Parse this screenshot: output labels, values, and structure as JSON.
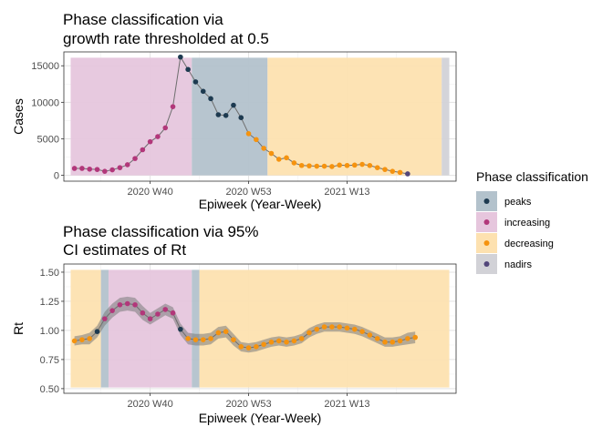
{
  "chart_data": [
    {
      "type": "line",
      "title_lines": [
        "Phase classification via",
        "growth rate thresholded at 0.5"
      ],
      "xlabel": "Epiweek (Year-Week)",
      "ylabel": "Cases",
      "x_ticks": [
        "2020 W40",
        "2020 W53",
        "2021 W13"
      ],
      "y_ticks": [
        "0",
        "5000",
        "10000",
        "15000"
      ],
      "ylim": [
        -800,
        16900
      ],
      "grid": true,
      "phases": [
        {
          "phase": "increasing",
          "start": 2.5,
          "end": 18.5
        },
        {
          "phase": "peaks",
          "start": 18.5,
          "end": 28.5
        },
        {
          "phase": "decreasing",
          "start": 28.5,
          "end": 51.5
        },
        {
          "phase": "nadirs",
          "start": 51.5,
          "end": 52.5
        }
      ],
      "points": [
        {
          "x": 3,
          "y": 950,
          "phase": "increasing"
        },
        {
          "x": 4,
          "y": 950,
          "phase": "increasing"
        },
        {
          "x": 5,
          "y": 850,
          "phase": "increasing"
        },
        {
          "x": 6,
          "y": 800,
          "phase": "increasing"
        },
        {
          "x": 7,
          "y": 550,
          "phase": "increasing"
        },
        {
          "x": 8,
          "y": 750,
          "phase": "increasing"
        },
        {
          "x": 9,
          "y": 1050,
          "phase": "increasing"
        },
        {
          "x": 10,
          "y": 1450,
          "phase": "increasing"
        },
        {
          "x": 11,
          "y": 2300,
          "phase": "increasing"
        },
        {
          "x": 12,
          "y": 3500,
          "phase": "increasing"
        },
        {
          "x": 13,
          "y": 4600,
          "phase": "increasing"
        },
        {
          "x": 14,
          "y": 5300,
          "phase": "increasing"
        },
        {
          "x": 15,
          "y": 6500,
          "phase": "increasing"
        },
        {
          "x": 16,
          "y": 9400,
          "phase": "increasing"
        },
        {
          "x": 17,
          "y": 16200,
          "phase": "peaks"
        },
        {
          "x": 18,
          "y": 14500,
          "phase": "peaks"
        },
        {
          "x": 19,
          "y": 12800,
          "phase": "peaks"
        },
        {
          "x": 20,
          "y": 11500,
          "phase": "peaks"
        },
        {
          "x": 21,
          "y": 10500,
          "phase": "peaks"
        },
        {
          "x": 22,
          "y": 8300,
          "phase": "peaks"
        },
        {
          "x": 23,
          "y": 8200,
          "phase": "peaks"
        },
        {
          "x": 24,
          "y": 9600,
          "phase": "peaks"
        },
        {
          "x": 25,
          "y": 7900,
          "phase": "peaks"
        },
        {
          "x": 26,
          "y": 5700,
          "phase": "decreasing"
        },
        {
          "x": 27,
          "y": 4900,
          "phase": "decreasing"
        },
        {
          "x": 28,
          "y": 3700,
          "phase": "decreasing"
        },
        {
          "x": 29,
          "y": 3000,
          "phase": "decreasing"
        },
        {
          "x": 30,
          "y": 2200,
          "phase": "decreasing"
        },
        {
          "x": 31,
          "y": 2400,
          "phase": "decreasing"
        },
        {
          "x": 32,
          "y": 1700,
          "phase": "decreasing"
        },
        {
          "x": 33,
          "y": 1350,
          "phase": "decreasing"
        },
        {
          "x": 34,
          "y": 1300,
          "phase": "decreasing"
        },
        {
          "x": 35,
          "y": 1250,
          "phase": "decreasing"
        },
        {
          "x": 36,
          "y": 1250,
          "phase": "decreasing"
        },
        {
          "x": 37,
          "y": 1200,
          "phase": "decreasing"
        },
        {
          "x": 38,
          "y": 1400,
          "phase": "decreasing"
        },
        {
          "x": 39,
          "y": 1350,
          "phase": "decreasing"
        },
        {
          "x": 40,
          "y": 1400,
          "phase": "decreasing"
        },
        {
          "x": 41,
          "y": 1500,
          "phase": "decreasing"
        },
        {
          "x": 42,
          "y": 1350,
          "phase": "decreasing"
        },
        {
          "x": 43,
          "y": 1050,
          "phase": "decreasing"
        },
        {
          "x": 44,
          "y": 800,
          "phase": "decreasing"
        },
        {
          "x": 45,
          "y": 550,
          "phase": "decreasing"
        },
        {
          "x": 46,
          "y": 400,
          "phase": "decreasing"
        },
        {
          "x": 47,
          "y": 200,
          "phase": "nadirs"
        }
      ]
    },
    {
      "type": "line",
      "title_lines": [
        "Phase classification via 95%",
        "CI estimates of Rt"
      ],
      "xlabel": "Epiweek (Year-Week)",
      "ylabel": "Rt",
      "x_ticks": [
        "2020 W40",
        "2020 W53",
        "2021 W13"
      ],
      "y_ticks": [
        "0.50",
        "0.75",
        "1.00",
        "1.25",
        "1.50"
      ],
      "ylim": [
        0.46,
        1.57
      ],
      "grid": true,
      "phases": [
        {
          "phase": "decreasing",
          "start": 2.5,
          "end": 6.5
        },
        {
          "phase": "peaks",
          "start": 6.5,
          "end": 7.5
        },
        {
          "phase": "increasing",
          "start": 7.5,
          "end": 18.5
        },
        {
          "phase": "peaks",
          "start": 18.5,
          "end": 19.5
        },
        {
          "phase": "decreasing",
          "start": 19.5,
          "end": 52.5
        }
      ],
      "points": [
        {
          "x": 3,
          "y": 0.91,
          "lo": 0.87,
          "hi": 0.95,
          "phase": "decreasing"
        },
        {
          "x": 4,
          "y": 0.92,
          "lo": 0.88,
          "hi": 0.96,
          "phase": "decreasing"
        },
        {
          "x": 5,
          "y": 0.93,
          "lo": 0.88,
          "hi": 0.98,
          "phase": "decreasing"
        },
        {
          "x": 6,
          "y": 0.99,
          "lo": 0.94,
          "hi": 1.04,
          "phase": "peaks"
        },
        {
          "x": 7,
          "y": 1.1,
          "lo": 1.04,
          "hi": 1.16,
          "phase": "increasing"
        },
        {
          "x": 8,
          "y": 1.17,
          "lo": 1.11,
          "hi": 1.23,
          "phase": "increasing"
        },
        {
          "x": 9,
          "y": 1.22,
          "lo": 1.16,
          "hi": 1.28,
          "phase": "increasing"
        },
        {
          "x": 10,
          "y": 1.23,
          "lo": 1.17,
          "hi": 1.29,
          "phase": "increasing"
        },
        {
          "x": 11,
          "y": 1.22,
          "lo": 1.16,
          "hi": 1.28,
          "phase": "increasing"
        },
        {
          "x": 12,
          "y": 1.15,
          "lo": 1.09,
          "hi": 1.21,
          "phase": "increasing"
        },
        {
          "x": 13,
          "y": 1.1,
          "lo": 1.05,
          "hi": 1.15,
          "phase": "increasing"
        },
        {
          "x": 14,
          "y": 1.14,
          "lo": 1.09,
          "hi": 1.19,
          "phase": "increasing"
        },
        {
          "x": 15,
          "y": 1.18,
          "lo": 1.13,
          "hi": 1.23,
          "phase": "increasing"
        },
        {
          "x": 16,
          "y": 1.15,
          "lo": 1.1,
          "hi": 1.2,
          "phase": "increasing"
        },
        {
          "x": 17,
          "y": 1.01,
          "lo": 0.96,
          "hi": 1.06,
          "phase": "peaks"
        },
        {
          "x": 18,
          "y": 0.93,
          "lo": 0.88,
          "hi": 0.98,
          "phase": "decreasing"
        },
        {
          "x": 19,
          "y": 0.92,
          "lo": 0.87,
          "hi": 0.97,
          "phase": "decreasing"
        },
        {
          "x": 20,
          "y": 0.92,
          "lo": 0.87,
          "hi": 0.97,
          "phase": "decreasing"
        },
        {
          "x": 21,
          "y": 0.93,
          "lo": 0.88,
          "hi": 0.98,
          "phase": "decreasing"
        },
        {
          "x": 22,
          "y": 0.98,
          "lo": 0.93,
          "hi": 1.03,
          "phase": "decreasing"
        },
        {
          "x": 23,
          "y": 0.99,
          "lo": 0.94,
          "hi": 1.04,
          "phase": "decreasing"
        },
        {
          "x": 24,
          "y": 0.92,
          "lo": 0.87,
          "hi": 0.97,
          "phase": "decreasing"
        },
        {
          "x": 25,
          "y": 0.86,
          "lo": 0.82,
          "hi": 0.9,
          "phase": "decreasing"
        },
        {
          "x": 26,
          "y": 0.85,
          "lo": 0.81,
          "hi": 0.89,
          "phase": "decreasing"
        },
        {
          "x": 27,
          "y": 0.86,
          "lo": 0.82,
          "hi": 0.9,
          "phase": "decreasing"
        },
        {
          "x": 28,
          "y": 0.88,
          "lo": 0.84,
          "hi": 0.92,
          "phase": "decreasing"
        },
        {
          "x": 29,
          "y": 0.9,
          "lo": 0.86,
          "hi": 0.94,
          "phase": "decreasing"
        },
        {
          "x": 30,
          "y": 0.91,
          "lo": 0.87,
          "hi": 0.95,
          "phase": "decreasing"
        },
        {
          "x": 31,
          "y": 0.9,
          "lo": 0.86,
          "hi": 0.94,
          "phase": "decreasing"
        },
        {
          "x": 32,
          "y": 0.91,
          "lo": 0.87,
          "hi": 0.95,
          "phase": "decreasing"
        },
        {
          "x": 33,
          "y": 0.93,
          "lo": 0.89,
          "hi": 0.97,
          "phase": "decreasing"
        },
        {
          "x": 34,
          "y": 0.98,
          "lo": 0.94,
          "hi": 1.02,
          "phase": "decreasing"
        },
        {
          "x": 35,
          "y": 1.01,
          "lo": 0.97,
          "hi": 1.05,
          "phase": "decreasing"
        },
        {
          "x": 36,
          "y": 1.03,
          "lo": 0.99,
          "hi": 1.07,
          "phase": "decreasing"
        },
        {
          "x": 37,
          "y": 1.03,
          "lo": 0.99,
          "hi": 1.07,
          "phase": "decreasing"
        },
        {
          "x": 38,
          "y": 1.03,
          "lo": 0.99,
          "hi": 1.07,
          "phase": "decreasing"
        },
        {
          "x": 39,
          "y": 1.02,
          "lo": 0.98,
          "hi": 1.06,
          "phase": "decreasing"
        },
        {
          "x": 40,
          "y": 1.01,
          "lo": 0.97,
          "hi": 1.05,
          "phase": "decreasing"
        },
        {
          "x": 41,
          "y": 0.99,
          "lo": 0.95,
          "hi": 1.03,
          "phase": "decreasing"
        },
        {
          "x": 42,
          "y": 0.96,
          "lo": 0.92,
          "hi": 1.0,
          "phase": "decreasing"
        },
        {
          "x": 43,
          "y": 0.93,
          "lo": 0.89,
          "hi": 0.97,
          "phase": "decreasing"
        },
        {
          "x": 44,
          "y": 0.9,
          "lo": 0.86,
          "hi": 0.94,
          "phase": "decreasing"
        },
        {
          "x": 45,
          "y": 0.9,
          "lo": 0.86,
          "hi": 0.94,
          "phase": "decreasing"
        },
        {
          "x": 46,
          "y": 0.91,
          "lo": 0.87,
          "hi": 0.95,
          "phase": "decreasing"
        },
        {
          "x": 47,
          "y": 0.93,
          "lo": 0.88,
          "hi": 0.98,
          "phase": "decreasing"
        },
        {
          "x": 48,
          "y": 0.94,
          "lo": 0.89,
          "hi": 0.99,
          "phase": "decreasing"
        }
      ]
    }
  ],
  "legend": {
    "title": "Phase classification",
    "items": [
      {
        "label": "peaks",
        "key": "peaks"
      },
      {
        "label": "increasing",
        "key": "increasing"
      },
      {
        "label": "decreasing",
        "key": "decreasing"
      },
      {
        "label": "nadirs",
        "key": "nadirs"
      }
    ]
  },
  "colors": {
    "peaks": {
      "fill": "#b3c2cc",
      "point": "#1d3a50"
    },
    "increasing": {
      "fill": "#e6c6dd",
      "point": "#b2377a"
    },
    "decreasing": {
      "fill": "#fde1b0",
      "point": "#f5930f"
    },
    "nadirs": {
      "fill": "#d2d2d7",
      "point": "#52467a"
    },
    "line": "#6e6e6e",
    "ribbon": "#7a7a7a"
  }
}
